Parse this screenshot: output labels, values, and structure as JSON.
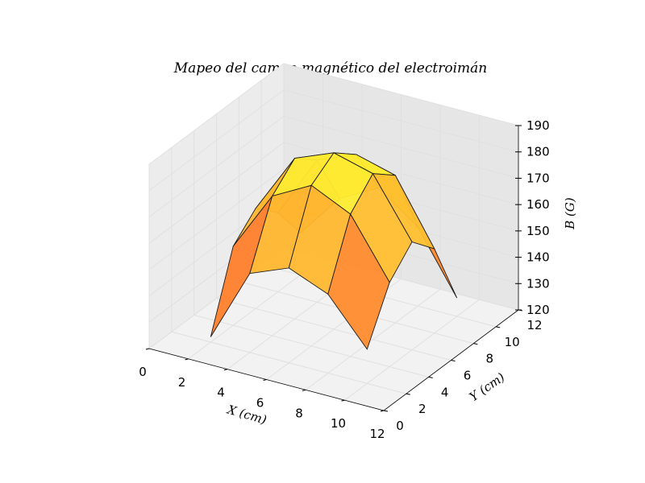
{
  "chart_data": {
    "type": "surface3d",
    "title": "Mapeo del campo magnético del electroimán",
    "xlabel": "X (cm)",
    "ylabel": "Y (cm)",
    "zlabel": "B (G)",
    "xticks": [
      "0",
      "2",
      "4",
      "6",
      "8",
      "10",
      "12"
    ],
    "yticks": [
      "0",
      "2",
      "4",
      "6",
      "8",
      "10",
      "12"
    ],
    "zticks": [
      "120",
      "130",
      "140",
      "150",
      "160",
      "170",
      "180",
      "190"
    ],
    "xlim": [
      0,
      12
    ],
    "ylim": [
      0,
      12
    ],
    "zlim": [
      120,
      190
    ],
    "grid": true,
    "colormap": "autumn",
    "colors": {
      "low": "#ff2a2a",
      "mid": "#ff9933",
      "high": "#ffff33",
      "pane": "#f2f2f2",
      "grid": "#e0e0e0",
      "edge": "#1a1a1a"
    },
    "x": [
      2,
      4,
      6,
      8,
      10
    ],
    "y": [
      2,
      4,
      6,
      8,
      10
    ],
    "z": [
      [
        122,
        150,
        158,
        150,
        136
      ],
      [
        150,
        173,
        181,
        174,
        153
      ],
      [
        156,
        181,
        187,
        180,
        161
      ],
      [
        150,
        174,
        183,
        176,
        150
      ],
      [
        133,
        152,
        161,
        152,
        127
      ]
    ]
  }
}
